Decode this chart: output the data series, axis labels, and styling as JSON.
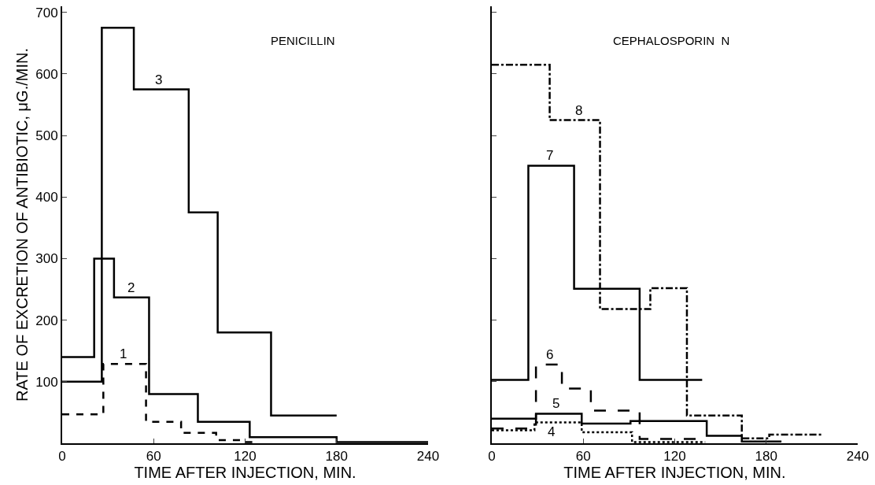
{
  "chart_data": [
    {
      "type": "step",
      "title": "PENICILLIN",
      "xlabel": "TIME AFTER INJECTION, MIN.",
      "ylabel": "RATE OF EXCRETION OF ANTIBIOTIC, μG./MIN.",
      "xlim": [
        0,
        240
      ],
      "xticks": [
        0,
        60,
        120,
        180,
        240
      ],
      "ylim": [
        0,
        710
      ],
      "yticks": [
        100,
        200,
        300,
        400,
        500,
        600,
        700
      ],
      "series": [
        {
          "color": "#000000",
          "line_style": "dashed",
          "x": [
            0,
            27,
            55,
            78,
            101,
            118,
            125
          ],
          "values": [
            47,
            129,
            35,
            17,
            5,
            2,
            2
          ]
        },
        {
          "color": "#000000",
          "line_style": "solid",
          "x": [
            0,
            21,
            34,
            57,
            89,
            123,
            180,
            240
          ],
          "values": [
            140,
            300,
            237,
            80,
            35,
            10,
            2,
            2
          ]
        },
        {
          "color": "#000000",
          "line_style": "solid",
          "x": [
            0,
            26,
            47,
            83,
            102,
            137,
            180
          ],
          "values": [
            100,
            675,
            575,
            375,
            180,
            45,
            45
          ]
        }
      ],
      "annotations": [
        {
          "text": "1",
          "x": 40,
          "y": 129
        },
        {
          "text": "2",
          "x": 45,
          "y": 237
        },
        {
          "text": "3",
          "x": 63,
          "y": 575
        }
      ]
    },
    {
      "type": "step",
      "title": "CEPHALOSPORIN  N",
      "xlabel": "TIME AFTER INJECTION, MIN.",
      "xlim": [
        0,
        240
      ],
      "xticks": [
        0,
        60,
        120,
        180,
        240
      ],
      "ylim": [
        0,
        710
      ],
      "yticks": [
        {
          "value": 100,
          "label": null
        },
        {
          "value": 200,
          "label": null
        },
        {
          "value": 300,
          "label": null
        },
        {
          "value": 400,
          "label": null
        },
        {
          "value": 500,
          "label": null
        },
        {
          "value": 600,
          "label": null
        },
        {
          "value": 700,
          "label": null
        }
      ],
      "tick_labels": "x",
      "series": [
        {
          "color": "#000000",
          "line_style": "dotted",
          "x": [
            0,
            28,
            59,
            92,
            140
          ],
          "values": [
            21,
            34,
            18,
            2,
            2
          ]
        },
        {
          "color": "#000000",
          "line_style": "solid",
          "x": [
            0,
            29,
            59,
            91,
            141,
            164,
            190
          ],
          "values": [
            40,
            48,
            32,
            36,
            12,
            3,
            3
          ]
        },
        {
          "color": "#000000",
          "line_style": "longdashed",
          "x": [
            0,
            29,
            46,
            65,
            97,
            140
          ],
          "values": [
            24,
            128,
            89,
            53,
            7,
            7
          ]
        },
        {
          "color": "#000000",
          "line_style": "solid",
          "x": [
            0,
            24,
            54,
            97,
            138
          ],
          "values": [
            103,
            451,
            251,
            103,
            103
          ]
        },
        {
          "color": "#000000",
          "line_style": "dashdot",
          "x": [
            0,
            38,
            71,
            104,
            128,
            164,
            182,
            217
          ],
          "values": [
            615,
            525,
            218,
            252,
            45,
            8,
            14,
            14
          ]
        }
      ],
      "annotations": [
        {
          "text": "4",
          "x": 39,
          "y": 34
        },
        {
          "text": "5",
          "x": 42,
          "y": 48
        },
        {
          "text": "6",
          "x": 38,
          "y": 128
        },
        {
          "text": "7",
          "x": 38,
          "y": 451
        },
        {
          "text": "8",
          "x": 57,
          "y": 525
        }
      ]
    }
  ]
}
